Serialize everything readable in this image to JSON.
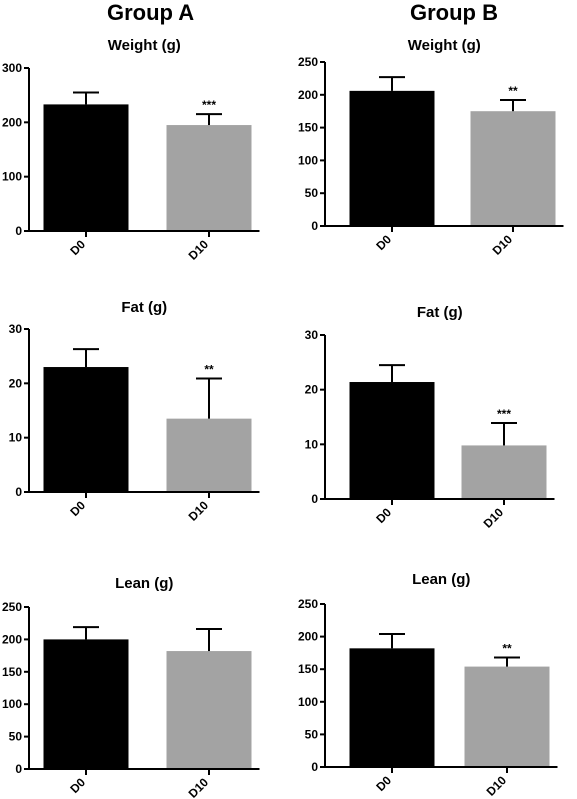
{
  "groups": [
    {
      "title": "Group A"
    },
    {
      "title": "Group B"
    }
  ],
  "chart_data": [
    {
      "type": "bar",
      "group": "Group A",
      "title": "Weight (g)",
      "categories": [
        "D0",
        "D10"
      ],
      "values": [
        233,
        195
      ],
      "error": [
        22,
        20
      ],
      "significance": [
        "",
        "***"
      ],
      "ylim": [
        0,
        300
      ],
      "yticks": [
        0,
        100,
        200,
        300
      ],
      "bar_colors": [
        "#000000",
        "#a3a3a3"
      ]
    },
    {
      "type": "bar",
      "group": "Group B",
      "title": "Weight (g)",
      "categories": [
        "D0",
        "D10"
      ],
      "values": [
        206,
        175
      ],
      "error": [
        21,
        17
      ],
      "significance": [
        "",
        "**"
      ],
      "ylim": [
        0,
        250
      ],
      "yticks": [
        0,
        50,
        100,
        150,
        200,
        250
      ],
      "bar_colors": [
        "#000000",
        "#a3a3a3"
      ]
    },
    {
      "type": "bar",
      "group": "Group A",
      "title": "Fat (g)",
      "categories": [
        "D0",
        "D10"
      ],
      "values": [
        23,
        13.5
      ],
      "error": [
        3.3,
        7.4
      ],
      "significance": [
        "",
        "**"
      ],
      "ylim": [
        0,
        30
      ],
      "yticks": [
        0,
        10,
        20,
        30
      ],
      "bar_colors": [
        "#000000",
        "#a3a3a3"
      ]
    },
    {
      "type": "bar",
      "group": "Group B",
      "title": "Fat (g)",
      "categories": [
        "D0",
        "D10"
      ],
      "values": [
        21.4,
        9.8
      ],
      "error": [
        3.1,
        4.1
      ],
      "significance": [
        "",
        "***"
      ],
      "ylim": [
        0,
        30
      ],
      "yticks": [
        0,
        10,
        20,
        30
      ],
      "bar_colors": [
        "#000000",
        "#a3a3a3"
      ]
    },
    {
      "type": "bar",
      "group": "Group A",
      "title": "Lean (g)",
      "categories": [
        "D0",
        "D10"
      ],
      "values": [
        200,
        182
      ],
      "error": [
        19,
        34
      ],
      "significance": [
        "",
        ""
      ],
      "ylim": [
        0,
        250
      ],
      "yticks": [
        0,
        50,
        100,
        150,
        200,
        250
      ],
      "bar_colors": [
        "#000000",
        "#a3a3a3"
      ]
    },
    {
      "type": "bar",
      "group": "Group B",
      "title": "Lean (g)",
      "categories": [
        "D0",
        "D10"
      ],
      "values": [
        182,
        154
      ],
      "error": [
        22,
        14
      ],
      "significance": [
        "",
        "**"
      ],
      "ylim": [
        0,
        250
      ],
      "yticks": [
        0,
        50,
        100,
        150,
        200,
        250
      ],
      "bar_colors": [
        "#000000",
        "#a3a3a3"
      ]
    }
  ]
}
